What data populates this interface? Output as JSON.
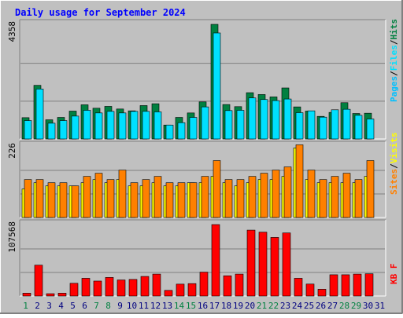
{
  "title": "Daily usage for September 2024",
  "colors": {
    "background": "#c0c0c0",
    "title": "#0000ff",
    "hits": "#008040",
    "files": "#00e0ff",
    "pages": "#00c0ff",
    "visits": "#ffff00",
    "sites": "#ff8000",
    "kbytes": "#ff0000",
    "grid": "#808080",
    "weekend": "#008040",
    "weekday": "#000080"
  },
  "chart_data": [
    {
      "type": "bar",
      "name": "hits-files-pages",
      "ymax_label": "4358",
      "ylim": [
        0,
        4358
      ],
      "axis_label_parts": [
        "Pages",
        "Files",
        "Hits"
      ],
      "categories": [
        "1",
        "2",
        "3",
        "4",
        "5",
        "6",
        "7",
        "8",
        "9",
        "10",
        "11",
        "12",
        "13",
        "14",
        "15",
        "16",
        "17",
        "18",
        "19",
        "20",
        "21",
        "22",
        "23",
        "24",
        "25",
        "26",
        "27",
        "28",
        "29",
        "30",
        "31"
      ],
      "series": [
        {
          "name": "Hits",
          "values": [
            810,
            2040,
            730,
            820,
            1060,
            1300,
            1170,
            1240,
            1140,
            1070,
            1270,
            1340,
            530,
            820,
            990,
            1410,
            4358,
            1310,
            1230,
            1760,
            1690,
            1600,
            1940,
            1220,
            1060,
            860,
            1010,
            1380,
            970,
            980,
            0
          ]
        },
        {
          "name": "Files",
          "values": [
            700,
            1900,
            600,
            700,
            870,
            1090,
            990,
            1050,
            990,
            1050,
            1050,
            1030,
            530,
            620,
            820,
            1220,
            4030,
            1080,
            1090,
            1560,
            1500,
            1460,
            1520,
            1000,
            1070,
            830,
            1110,
            1130,
            900,
            760,
            0
          ]
        },
        {
          "name": "Pages",
          "values": [
            700,
            1900,
            600,
            700,
            870,
            1090,
            990,
            1050,
            990,
            1050,
            1050,
            1030,
            530,
            620,
            820,
            1220,
            4030,
            1080,
            1090,
            1560,
            1500,
            1460,
            1520,
            1000,
            1070,
            830,
            1110,
            1130,
            900,
            760,
            0
          ]
        }
      ]
    },
    {
      "type": "bar",
      "name": "visits-sites",
      "ymax_label": "226",
      "ylim": [
        0,
        226
      ],
      "axis_label_parts": [
        "Sites",
        "Visits"
      ],
      "categories": [
        "1",
        "2",
        "3",
        "4",
        "5",
        "6",
        "7",
        "8",
        "9",
        "10",
        "11",
        "12",
        "13",
        "14",
        "15",
        "16",
        "17",
        "18",
        "19",
        "20",
        "21",
        "22",
        "23",
        "24",
        "25",
        "26",
        "27",
        "28",
        "29",
        "30",
        "31"
      ],
      "series": [
        {
          "name": "Visits",
          "values": [
            90,
            110,
            100,
            100,
            100,
            110,
            120,
            110,
            120,
            100,
            100,
            110,
            100,
            100,
            110,
            110,
            130,
            110,
            100,
            110,
            120,
            120,
            130,
            220,
            120,
            110,
            110,
            110,
            110,
            130,
            0
          ]
        },
        {
          "name": "Sites",
          "values": [
            120,
            120,
            110,
            110,
            100,
            130,
            140,
            120,
            150,
            110,
            120,
            130,
            110,
            110,
            110,
            130,
            180,
            120,
            120,
            130,
            140,
            150,
            160,
            230,
            150,
            120,
            130,
            140,
            120,
            180,
            0
          ]
        }
      ]
    },
    {
      "type": "bar",
      "name": "kbytes",
      "ymax_label": "107568",
      "ylim": [
        0,
        107568
      ],
      "axis_label_parts": [
        "KB F"
      ],
      "categories": [
        "1",
        "2",
        "3",
        "4",
        "5",
        "6",
        "7",
        "8",
        "9",
        "10",
        "11",
        "12",
        "13",
        "14",
        "15",
        "16",
        "17",
        "18",
        "19",
        "20",
        "21",
        "22",
        "23",
        "24",
        "25",
        "26",
        "27",
        "28",
        "29",
        "30",
        "31"
      ],
      "series": [
        {
          "name": "KBytes",
          "values": [
            4300,
            46500,
            3500,
            4300,
            19200,
            26700,
            22500,
            28000,
            24200,
            25000,
            29500,
            33000,
            8500,
            17900,
            18700,
            36000,
            107568,
            30500,
            33000,
            99200,
            96200,
            88200,
            95000,
            26700,
            18000,
            10200,
            32000,
            32000,
            33000,
            33500,
            0
          ]
        }
      ]
    }
  ],
  "weekend_days": [
    1,
    7,
    8,
    14,
    15,
    21,
    22,
    28,
    29
  ]
}
